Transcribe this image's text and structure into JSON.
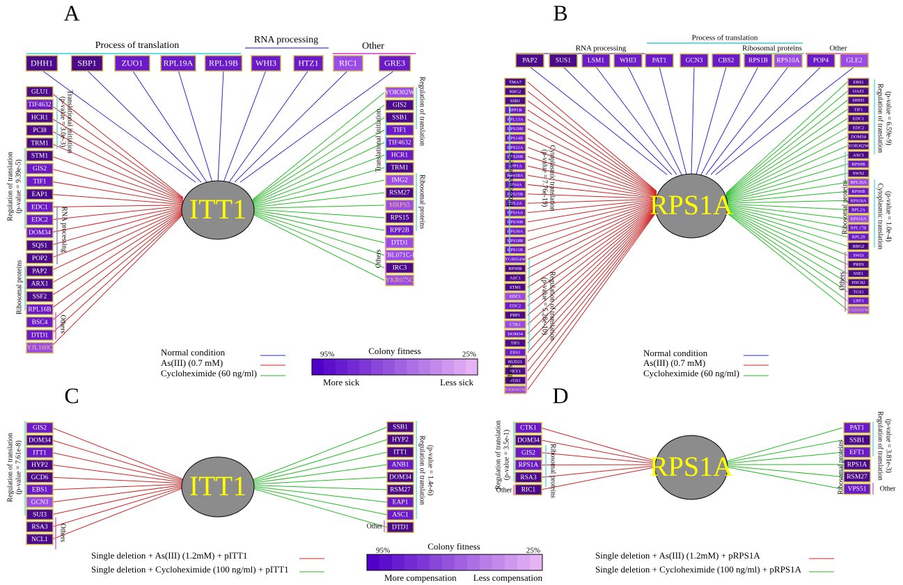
{
  "colors": {
    "box_dark": "#4a0a8a",
    "box_mid": "#6a1ac8",
    "box_light": "#9a4ae8",
    "box_border": "#d4b84a",
    "box_text": "#ffffff",
    "box_text_light": "#f0c870",
    "hub_fill": "#8c8c8c",
    "hub_text": "#ffff00",
    "normal_line": "#2a2acc",
    "as_line": "#cc2222",
    "cyclo_line": "#22bb22",
    "bracket_cyan": "#66dddd",
    "bracket_magenta": "#dd66dd",
    "bracket_purple": "#8888cc"
  },
  "panels": {
    "A": {
      "letter": "A",
      "hub": "ITT1",
      "top_groups": [
        {
          "label": "Process of translation"
        },
        {
          "label": "RNA processing"
        },
        {
          "label": "Other"
        }
      ],
      "top": [
        {
          "name": "DHH1",
          "shade": 0
        },
        {
          "name": "SBP1",
          "shade": 0
        },
        {
          "name": "ZUO1",
          "shade": 1
        },
        {
          "name": "RPL19A",
          "shade": 1
        },
        {
          "name": "RPL19B",
          "shade": 1
        },
        {
          "name": "WHI3",
          "shade": 1
        },
        {
          "name": "HTZ1",
          "shade": 1
        },
        {
          "name": "RIC1",
          "shade": 2
        },
        {
          "name": "GRE3",
          "shade": 1
        }
      ],
      "left": [
        {
          "name": "GLU1",
          "shade": 0
        },
        {
          "name": "TIF4632",
          "shade": 1
        },
        {
          "name": "HCR1",
          "shade": 0
        },
        {
          "name": "PCI8",
          "shade": 0
        },
        {
          "name": "TRM1",
          "shade": 0
        },
        {
          "name": "STM1",
          "shade": 0
        },
        {
          "name": "GIS2",
          "shade": 1
        },
        {
          "name": "TIF1",
          "shade": 1
        },
        {
          "name": "EAP1",
          "shade": 0
        },
        {
          "name": "EDC1",
          "shade": 1
        },
        {
          "name": "EDC2",
          "shade": 1
        },
        {
          "name": "DOM34",
          "shade": 1
        },
        {
          "name": "SQS1",
          "shade": 0
        },
        {
          "name": "POP2",
          "shade": 0
        },
        {
          "name": "PAP2",
          "shade": 0
        },
        {
          "name": "ARX1",
          "shade": 0
        },
        {
          "name": "SSF2",
          "shade": 0
        },
        {
          "name": "RPL16B",
          "shade": 1
        },
        {
          "name": "BSC4",
          "shade": 1
        },
        {
          "name": "DTD1",
          "shade": 1
        },
        {
          "name": "YJL160C",
          "shade": 3
        }
      ],
      "right": [
        {
          "name": "YOR302W",
          "shade": 2
        },
        {
          "name": "GIS2",
          "shade": 0
        },
        {
          "name": "SSB1",
          "shade": 0
        },
        {
          "name": "TIF1",
          "shade": 1
        },
        {
          "name": "TIF4632",
          "shade": 1
        },
        {
          "name": "HCR1",
          "shade": 1
        },
        {
          "name": "TRM1",
          "shade": 0
        },
        {
          "name": "IMG2",
          "shade": 2
        },
        {
          "name": "RSM27",
          "shade": 0
        },
        {
          "name": "MRPS5",
          "shade": 3
        },
        {
          "name": "RPS15",
          "shade": 0
        },
        {
          "name": "RPP2B",
          "shade": 1
        },
        {
          "name": "DTD1",
          "shade": 2
        },
        {
          "name": "YBL071C-B",
          "shade": 2
        },
        {
          "name": "IRC3",
          "shade": 0
        },
        {
          "name": "YKR075C",
          "shade": 3
        }
      ],
      "left_annotations": [
        {
          "text": "Translational initiation",
          "sub": "(p-value = 3.0e-3)"
        },
        {
          "text": "Regulation of translation",
          "sub": "(p-value = 9.39e-5)"
        },
        {
          "text": "RNA processing",
          "sub": ""
        },
        {
          "text": "Ribosomal proteins",
          "sub": ""
        },
        {
          "text": "Others",
          "sub": ""
        }
      ],
      "right_annotations": [
        {
          "text": "Regulation of translation",
          "sub": ""
        },
        {
          "text": "Translational initiation",
          "sub": ""
        },
        {
          "text": "Ribosomal proteins",
          "sub": ""
        },
        {
          "text": "Others",
          "sub": ""
        }
      ]
    },
    "B": {
      "letter": "B",
      "hub": "RPS1A",
      "top_groups": [
        {
          "label": "RNA processing"
        },
        {
          "label": "Process of translation"
        },
        {
          "label": "Ribosomal proteins"
        },
        {
          "label": "Other"
        }
      ],
      "top": [
        {
          "name": "PAP2",
          "shade": 0
        },
        {
          "name": "SUS1",
          "shade": 0
        },
        {
          "name": "LSM1",
          "shade": 1
        },
        {
          "name": "WHI3",
          "shade": 1
        },
        {
          "name": "PAT1",
          "shade": 1
        },
        {
          "name": "GCN3",
          "shade": 1
        },
        {
          "name": "CBS2",
          "shade": 1
        },
        {
          "name": "RPS1B",
          "shade": 1
        },
        {
          "name": "RPS10A",
          "shade": 2
        },
        {
          "name": "POP4",
          "shade": 1
        },
        {
          "name": "GLE2",
          "shade": 2
        }
      ],
      "left": [
        {
          "name": "TMA7",
          "shade": 0
        },
        {
          "name": "RBG2",
          "shade": 0
        },
        {
          "name": "SSB1",
          "shade": 0
        },
        {
          "name": "RPP1B",
          "shade": 1
        },
        {
          "name": "RPL13A",
          "shade": 1
        },
        {
          "name": "RPS29B",
          "shade": 1
        },
        {
          "name": "RPS14B",
          "shade": 1
        },
        {
          "name": "RPS22A",
          "shade": 1
        },
        {
          "name": "RPS26B",
          "shade": 1
        },
        {
          "name": "RPP1A",
          "shade": 1
        },
        {
          "name": "RPS18A",
          "shade": 1
        },
        {
          "name": "RPS4A",
          "shade": 1
        },
        {
          "name": "RPS25B",
          "shade": 1
        },
        {
          "name": "RPL2A",
          "shade": 1
        },
        {
          "name": "RPS16A",
          "shade": 1
        },
        {
          "name": "RPS30B",
          "shade": 1
        },
        {
          "name": "RPS30A",
          "shade": 1
        },
        {
          "name": "RPS18B",
          "shade": 1
        },
        {
          "name": "RPS11B",
          "shade": 1
        },
        {
          "name": "YGR054W",
          "shade": 1
        },
        {
          "name": "RPS9B",
          "shade": 0
        },
        {
          "name": "ASC1",
          "shade": 0
        },
        {
          "name": "STM1",
          "shade": 0
        },
        {
          "name": "EDC1",
          "shade": 2
        },
        {
          "name": "EDC2",
          "shade": 1
        },
        {
          "name": "PBP1",
          "shade": 0
        },
        {
          "name": "CTK1",
          "shade": 2
        },
        {
          "name": "DOM34",
          "shade": 1
        },
        {
          "name": "TIF1",
          "shade": 0
        },
        {
          "name": "EBS1",
          "shade": 1
        },
        {
          "name": "BUD21",
          "shade": 0
        },
        {
          "name": "SKY1",
          "shade": 0
        },
        {
          "name": "TGS1",
          "shade": 0
        },
        {
          "name": "YKR041W",
          "shade": 3
        }
      ],
      "right": [
        {
          "name": "EBS1",
          "shade": 0
        },
        {
          "name": "OAZ1",
          "shade": 0
        },
        {
          "name": "DHH1",
          "shade": 0
        },
        {
          "name": "TIF1",
          "shade": 0
        },
        {
          "name": "EDC1",
          "shade": 0
        },
        {
          "name": "EDC2",
          "shade": 0
        },
        {
          "name": "DOM34",
          "shade": 0
        },
        {
          "name": "YOR302W",
          "shade": 0
        },
        {
          "name": "ASC1",
          "shade": 0
        },
        {
          "name": "RPS9B",
          "shade": 1
        },
        {
          "name": "SWS2",
          "shade": 0
        },
        {
          "name": "RPL36A",
          "shade": 2
        },
        {
          "name": "RPS0B",
          "shade": 1
        },
        {
          "name": "RPS18A",
          "shade": 1
        },
        {
          "name": "RPL2A",
          "shade": 1
        },
        {
          "name": "RPS16A",
          "shade": 2
        },
        {
          "name": "RPL17B",
          "shade": 1
        },
        {
          "name": "RPL29",
          "shade": 1
        },
        {
          "name": "RBG2",
          "shade": 0
        },
        {
          "name": "SWI3",
          "shade": 1
        },
        {
          "name": "PRE9",
          "shade": 0
        },
        {
          "name": "SSE1",
          "shade": 0
        },
        {
          "name": "HSC82",
          "shade": 0
        },
        {
          "name": "TGS1",
          "shade": 0
        },
        {
          "name": "UPF3",
          "shade": 1
        },
        {
          "name": "YKR041W",
          "shade": 3
        }
      ],
      "left_annotations": [
        {
          "text": "Ribosomal proteins",
          "sub": ""
        },
        {
          "text": "Cytoplasmic translation",
          "sub": "(p-value = 7.76e-19)"
        },
        {
          "text": "Regulation of translation",
          "sub": "(p-value = 5.28e-10)"
        },
        {
          "text": "Others",
          "sub": ""
        }
      ],
      "right_annotations": [
        {
          "text": "Regulation of translation",
          "sub": "(p-value = 6.59e-9)"
        },
        {
          "text": "Ribosomal proteins",
          "sub": ""
        },
        {
          "text": "Cytoplasmic translation",
          "sub": "(p-value = 1.0e-4)"
        },
        {
          "text": "Others",
          "sub": ""
        }
      ]
    },
    "C": {
      "letter": "C",
      "hub": "ITT1",
      "left": [
        {
          "name": "GIS2",
          "shade": 1
        },
        {
          "name": "DOM34",
          "shade": 0
        },
        {
          "name": "ITT1",
          "shade": 1
        },
        {
          "name": "HYP2",
          "shade": 0
        },
        {
          "name": "GCD6",
          "shade": 0
        },
        {
          "name": "EBS1",
          "shade": 1
        },
        {
          "name": "GCN3",
          "shade": 2
        },
        {
          "name": "SUI3",
          "shade": 0
        },
        {
          "name": "RSA3",
          "shade": 0
        },
        {
          "name": "NCL1",
          "shade": 0
        }
      ],
      "right": [
        {
          "name": "SSB1",
          "shade": 0
        },
        {
          "name": "HYP2",
          "shade": 0
        },
        {
          "name": "ITT1",
          "shade": 0
        },
        {
          "name": "ANB1",
          "shade": 1
        },
        {
          "name": "DOM34",
          "shade": 0
        },
        {
          "name": "RSM27",
          "shade": 0
        },
        {
          "name": "EAP1",
          "shade": 1
        },
        {
          "name": "ASC1",
          "shade": 1
        },
        {
          "name": "DTD1",
          "shade": 0
        }
      ],
      "left_annotations": [
        {
          "text": "Regulation of translation",
          "sub": "(p-value = 7.61e-8)"
        },
        {
          "text": "Others",
          "sub": ""
        }
      ],
      "right_annotations": [
        {
          "text": "Regulation of translation",
          "sub": "(p-value = 1.4e-6)"
        },
        {
          "text": "Other",
          "sub": ""
        }
      ]
    },
    "D": {
      "letter": "D",
      "hub": "RPS1A",
      "left": [
        {
          "name": "CTK1",
          "shade": 1
        },
        {
          "name": "DOM34",
          "shade": 0
        },
        {
          "name": "GIS2",
          "shade": 1
        },
        {
          "name": "RPS1A",
          "shade": 1
        },
        {
          "name": "RSA3",
          "shade": 0
        },
        {
          "name": "RIC1",
          "shade": 0
        }
      ],
      "right": [
        {
          "name": "PAT1",
          "shade": 1
        },
        {
          "name": "SSB1",
          "shade": 0
        },
        {
          "name": "EFT1",
          "shade": 1
        },
        {
          "name": "RPS1A",
          "shade": 0
        },
        {
          "name": "RSM27",
          "shade": 0
        },
        {
          "name": "VPS51",
          "shade": 1
        }
      ],
      "left_annotations": [
        {
          "text": "Regulation of translation",
          "sub": "(p-value = 3.5e-1)"
        },
        {
          "text": "Ribosomal proteins",
          "sub": ""
        },
        {
          "text": "Other",
          "sub": ""
        }
      ],
      "right_annotations": [
        {
          "text": "Regulation of translation",
          "sub": "(p-value = 3.81e-3)"
        },
        {
          "text": "Ribosomal proteins",
          "sub": ""
        },
        {
          "text": "Other",
          "sub": ""
        }
      ]
    }
  },
  "legend_top": {
    "normal": "Normal condition",
    "as": "As(III) (0.7 mM)",
    "cyclo": "Cycloheximide (60 ng/ml)",
    "scale_title": "Colony fitness",
    "scale_left": "95%",
    "scale_right": "25%",
    "scale_low": "More sick",
    "scale_high": "Less sick"
  },
  "legend_bottom": {
    "c_as": "Single deletion + As(III) (1.2mM) + pITT1",
    "c_cyclo": "Single deletion + Cycloheximide (100 ng/ml) + pITT1",
    "d_as": "Single deletion + As(III) (1.2mM) + pRPS1A",
    "d_cyclo": "Single deletion + Cycloheximide (100 ng/ml) + pRPS1A",
    "scale_title": "Colony fitness",
    "scale_left": "95%",
    "scale_right": "25%",
    "scale_low": "More compensation",
    "scale_high": "Less compensation"
  }
}
